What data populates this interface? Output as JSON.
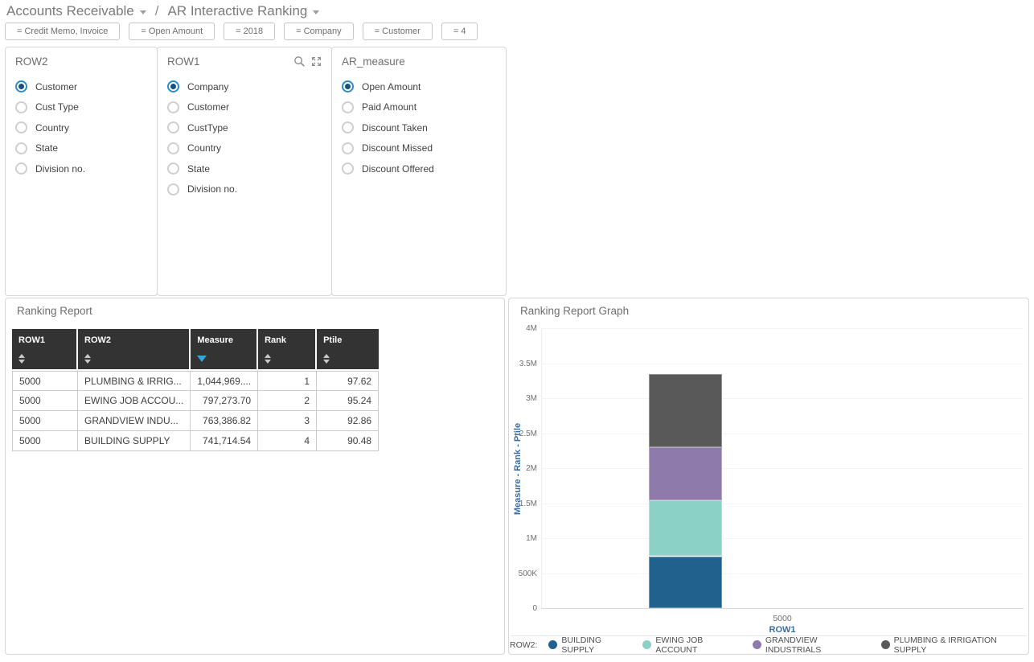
{
  "header": {
    "title_left": "Accounts Receivable",
    "separator": "/",
    "title_right": "AR Interactive Ranking"
  },
  "filters": {
    "chips": [
      "= Credit Memo, Invoice",
      "= Open Amount",
      "= 2018",
      "= Company",
      "= Customer",
      "= 4"
    ]
  },
  "selectors": [
    {
      "title": "ROW2",
      "options": [
        "Customer",
        "Cust Type",
        "Country",
        "State",
        "Division no."
      ],
      "selected_index": 0,
      "toolbar_icons": []
    },
    {
      "title": "ROW1",
      "options": [
        "Company",
        "Customer",
        "CustType",
        "Country",
        "State",
        "Division no."
      ],
      "selected_index": 0,
      "toolbar_icons": [
        "search",
        "expand"
      ]
    },
    {
      "title": "AR_measure",
      "options": [
        "Open Amount",
        "Paid Amount",
        "Discount Taken",
        "Discount Missed",
        "Discount Offered"
      ],
      "selected_index": 0,
      "toolbar_icons": []
    }
  ],
  "report": {
    "title": "Ranking Report",
    "columns": [
      {
        "label": "ROW1",
        "sort": "none",
        "align": "left",
        "width": 82
      },
      {
        "label": "ROW2",
        "sort": "none",
        "align": "left",
        "width": 120
      },
      {
        "label": "Measure",
        "sort": "desc",
        "align": "right",
        "width": 77
      },
      {
        "label": "Rank",
        "sort": "none",
        "align": "right",
        "width": 73
      },
      {
        "label": "Ptile",
        "sort": "none",
        "align": "right",
        "width": 77
      }
    ],
    "rows": [
      [
        "5000",
        "PLUMBING & IRRIG...",
        "1,044,969....",
        "1",
        "97.62"
      ],
      [
        "5000",
        "EWING JOB ACCOU...",
        "797,273.70",
        "2",
        "95.24"
      ],
      [
        "5000",
        "GRANDVIEW INDU...",
        "763,386.82",
        "3",
        "92.86"
      ],
      [
        "5000",
        "BUILDING SUPPLY",
        "741,714.54",
        "4",
        "90.48"
      ]
    ]
  },
  "graph": {
    "title": "Ranking Report Graph"
  },
  "chart_data": {
    "type": "bar",
    "stacked": true,
    "categories": [
      "5000"
    ],
    "series": [
      {
        "name": "BUILDING SUPPLY",
        "color": "#20618d",
        "values": [
          741714.54
        ]
      },
      {
        "name": "EWING JOB ACCOUNT",
        "color": "#8bd1c5",
        "values": [
          797273.7
        ]
      },
      {
        "name": "GRANDVIEW INDUSTRIALS",
        "color": "#8f7bab",
        "values": [
          763386.82
        ]
      },
      {
        "name": "PLUMBING & IRRIGATION SUPPLY",
        "color": "#595959",
        "values": [
          1044969.0
        ]
      }
    ],
    "xlabel": "ROW1",
    "ylabel": "Measure - Rank - Ptile",
    "ylim": [
      0,
      4000000
    ],
    "ytick_labels": [
      "0",
      "500K",
      "1M",
      "1.5M",
      "2M",
      "2.5M",
      "3M",
      "3.5M",
      "4M"
    ],
    "grid": true,
    "legend_position": "bottom",
    "legend_prefix": "ROW2:",
    "axis_label_color": "#3a6ea5"
  }
}
